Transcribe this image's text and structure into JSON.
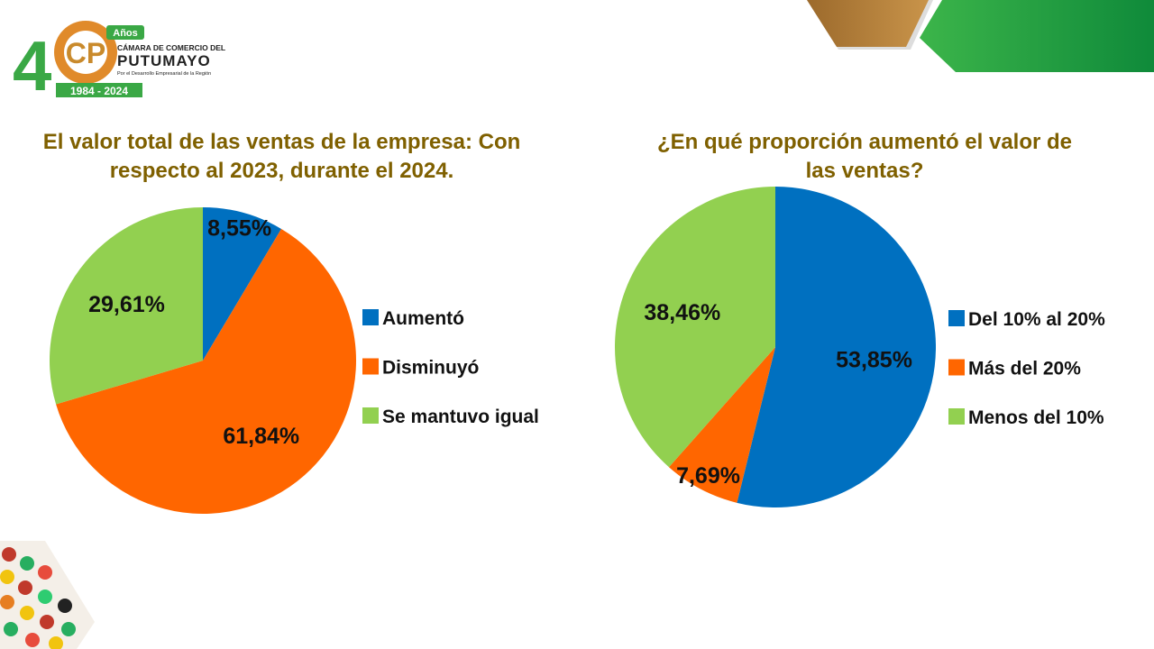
{
  "logo": {
    "number": "4",
    "badge": "Años",
    "line1": "CÁMARA DE COMERCIO DEL",
    "line2": "PUTUMAYO",
    "line3": "Por el Desarrollo Empresarial de la Región",
    "years": "1984 - 2024"
  },
  "chart_data": [
    {
      "type": "pie",
      "title": "El valor total de las ventas de la empresa: Con respecto al 2023, durante el 2024.",
      "categories": [
        "Aumentó",
        "Disminuyó",
        "Se mantuvo igual"
      ],
      "values": [
        8.55,
        61.84,
        29.61
      ],
      "value_labels": [
        "8,55%",
        "61,84%",
        "29,61%"
      ],
      "colors": [
        "#0070c0",
        "#ff6600",
        "#92d050"
      ],
      "legend": "right"
    },
    {
      "type": "pie",
      "title": "¿En qué proporción aumentó el valor de las ventas?",
      "categories": [
        "Del 10% al 20%",
        "Más del 20%",
        "Menos del 10%"
      ],
      "values": [
        53.85,
        7.69,
        38.46
      ],
      "value_labels": [
        "53,85%",
        "7,69%",
        "38,46%"
      ],
      "colors": [
        "#0070c0",
        "#ff6600",
        "#92d050"
      ],
      "legend": "right"
    }
  ]
}
